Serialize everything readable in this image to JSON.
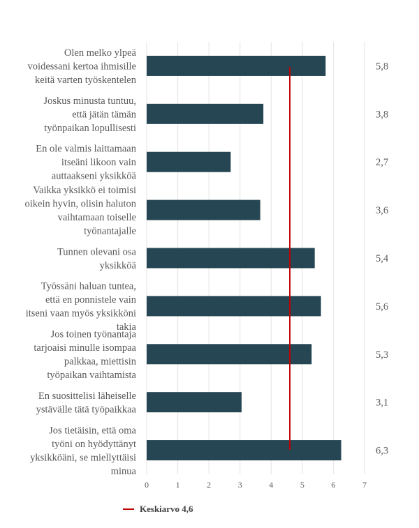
{
  "chart_data": {
    "type": "bar",
    "orientation": "horizontal",
    "categories": [
      [
        "Olen melko ylpeä",
        "voidessani kertoa ihmisille",
        "keitä varten työskentelen"
      ],
      [
        "Joskus minusta tuntuu,",
        "että jätän tämän",
        "työnpaikan lopullisesti"
      ],
      [
        "En ole valmis laittamaan",
        "itseäni likoon vain",
        "auttaakseni yksikköä"
      ],
      [
        "Vaikka yksikkö ei toimisi",
        "oikein hyvin, olisin haluton",
        "vaihtamaan toiselle",
        "työnantajalle"
      ],
      [
        "Tunnen olevani osa",
        "yksikköä"
      ],
      [
        "Työssäni haluan tuntea,",
        "että en ponnistele vain",
        "itseni vaan myös yksikköni",
        "takia"
      ],
      [
        "Jos toinen työnantaja",
        "tarjoaisi minulle isompaa",
        "palkkaa, miettisin",
        "työpaikan vaihtamista"
      ],
      [
        "En suosittelisi läheiselle",
        "ystävälle tätä työpaikkaa"
      ],
      [
        "Jos tietäisin, että oma",
        "työni on hyödyttänyt",
        "yksikköäni, se miellyttäisi",
        "minua"
      ]
    ],
    "values": [
      5.75,
      3.75,
      2.7,
      3.65,
      5.4,
      5.6,
      5.3,
      3.05,
      6.25
    ],
    "value_labels": [
      "5,8",
      "3,8",
      "2,7",
      "3,6",
      "5,4",
      "5,6",
      "5,3",
      "3,1",
      "6,3"
    ],
    "xlim": [
      0,
      7
    ],
    "x_ticks": [
      "0",
      "1",
      "2",
      "3",
      "4",
      "5",
      "6",
      "7"
    ],
    "reference_line": {
      "value": 4.6,
      "label": "Keskiarvo 4,6",
      "color": "#c00000"
    },
    "bar_color": "#264653",
    "grid": true,
    "legend_position": "bottom-left"
  }
}
